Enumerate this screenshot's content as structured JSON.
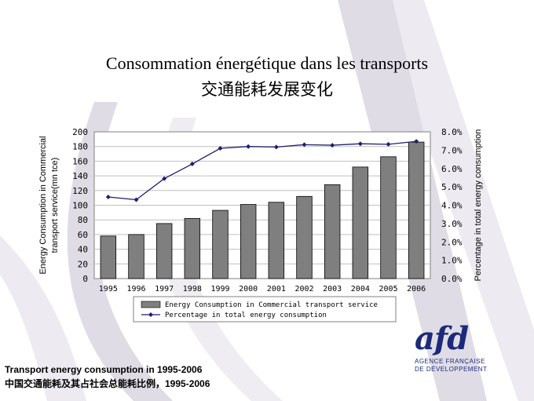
{
  "slide": {
    "title_fr": "Consommation énergétique dans les transports",
    "title_zh": "交通能耗发展变化",
    "caption_en": "Transport energy consumption in 1995-2006",
    "caption_zh": "中国交通能耗及其占社会总能耗比例，1995-2006"
  },
  "logo": {
    "mark": "afd",
    "line1": "AGENCE FRANÇAISE",
    "line2": "DE DÉVELOPPEMENT"
  },
  "chart_data": {
    "type": "bar",
    "categories": [
      "1995",
      "1996",
      "1997",
      "1998",
      "1999",
      "2000",
      "2001",
      "2002",
      "2003",
      "2004",
      "2005",
      "2006"
    ],
    "series": [
      {
        "name": "Energy Consumption in Commercial transport service",
        "type": "bar",
        "axis": "left",
        "values": [
          58,
          60,
          75,
          82,
          93,
          101,
          104,
          112,
          128,
          152,
          166,
          186
        ]
      },
      {
        "name": "Percentage in total energy consumption",
        "type": "line",
        "axis": "right",
        "values": [
          4.45,
          4.3,
          5.45,
          6.25,
          7.1,
          7.2,
          7.17,
          7.3,
          7.27,
          7.35,
          7.32,
          7.48
        ]
      }
    ],
    "ylabel": "Energy Consumption in Commercial transport service(mn tce)",
    "y2label": "Percentage in total energy consumption",
    "ylim": [
      0,
      200
    ],
    "yticks": [
      0,
      20,
      40,
      60,
      80,
      100,
      120,
      140,
      160,
      180,
      200
    ],
    "y2lim": [
      0,
      8
    ],
    "y2ticks": [
      "0.0%",
      "1.0%",
      "2.0%",
      "3.0%",
      "4.0%",
      "5.0%",
      "6.0%",
      "7.0%",
      "8.0%"
    ],
    "grid": true,
    "legend_position": "bottom",
    "colors": {
      "bar": "#7f7f7f",
      "line": "#1f1f6e",
      "grid": "#c0c0c0"
    }
  }
}
